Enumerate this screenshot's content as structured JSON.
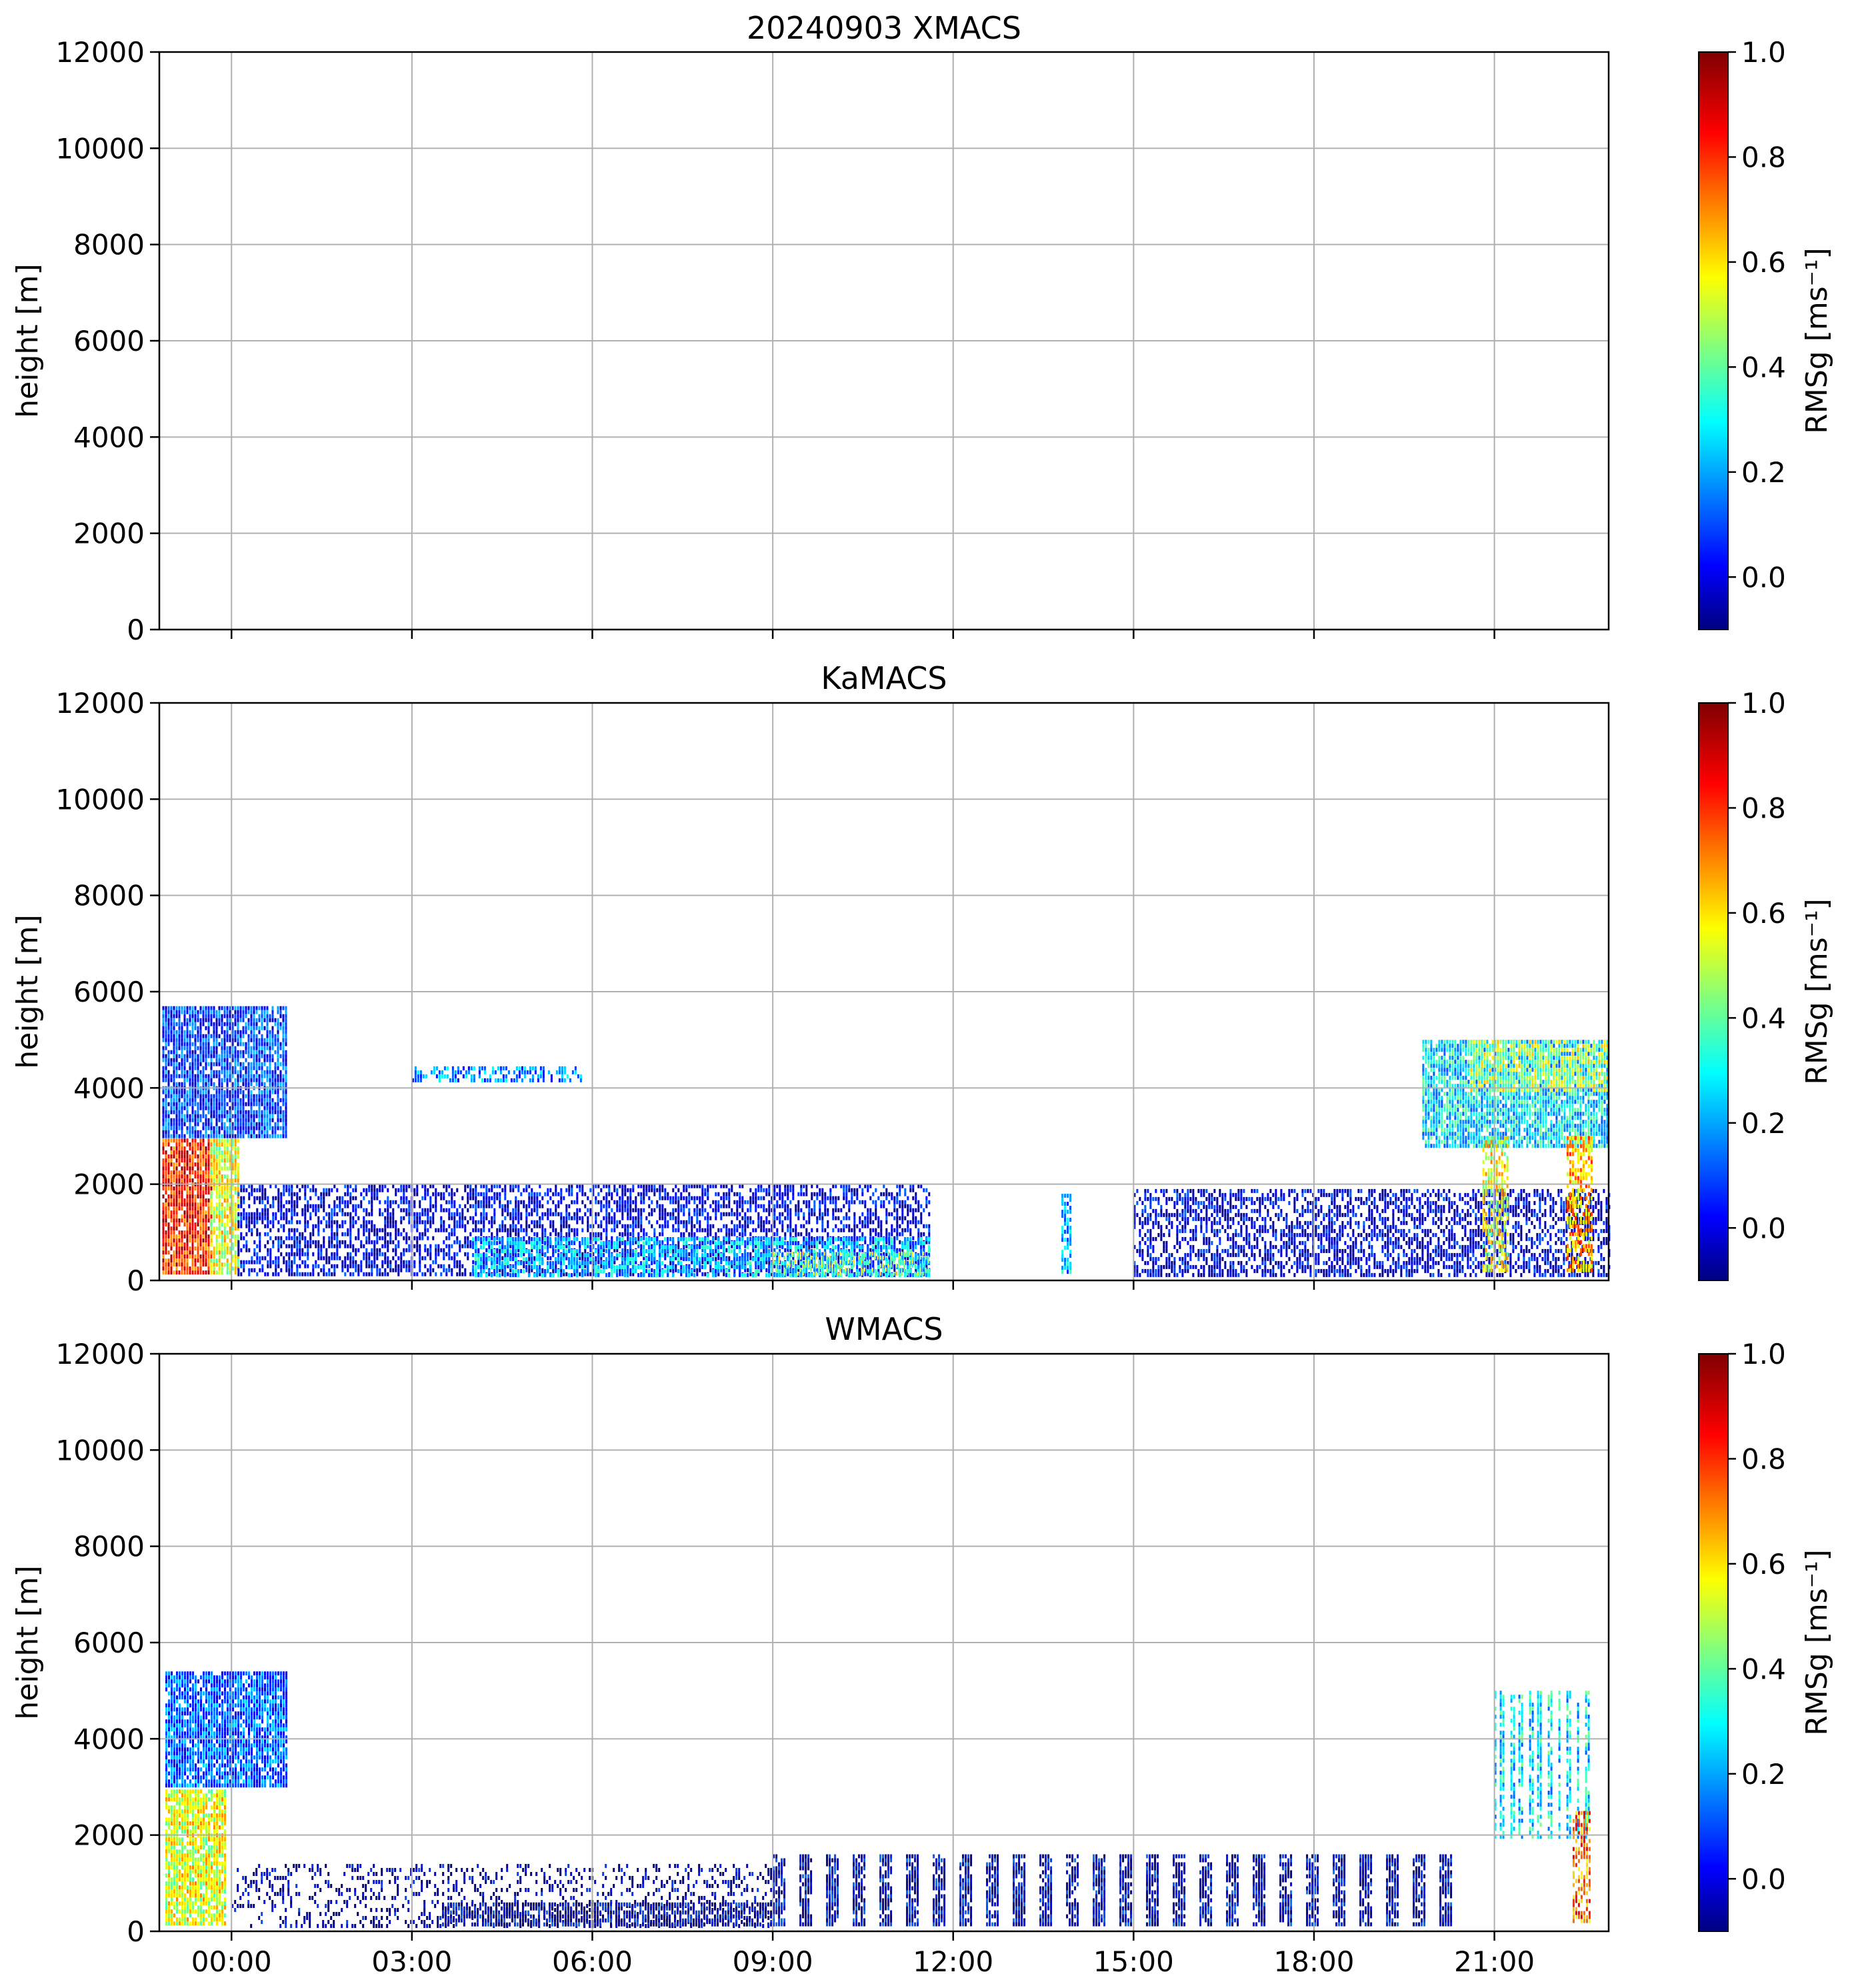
{
  "chart_data": [
    {
      "type": "heatmap",
      "title": "20240903 XMACS",
      "ylabel": "height [m]",
      "xlabel": "",
      "ylim": [
        0,
        12000
      ],
      "yticks": [
        "0",
        "2000",
        "4000",
        "6000",
        "8000",
        "10000",
        "12000"
      ],
      "xlim_hours": [
        -1.2,
        22.9
      ],
      "xticks": [],
      "grid": true,
      "colorbar": {
        "label": "RMSg [ms⁻¹]",
        "range": [
          -0.1,
          1.0
        ],
        "ticks": [
          "0.0",
          "0.2",
          "0.4",
          "0.6",
          "0.8",
          "1.0"
        ],
        "colormap": "jet"
      },
      "regions": []
    },
    {
      "type": "heatmap",
      "title": "KaMACS",
      "ylabel": "height [m]",
      "xlabel": "",
      "ylim": [
        0,
        12000
      ],
      "yticks": [
        "0",
        "2000",
        "4000",
        "6000",
        "8000",
        "10000",
        "12000"
      ],
      "xlim_hours": [
        -1.2,
        22.9
      ],
      "xticks": [],
      "grid": true,
      "colorbar": {
        "label": "RMSg [ms⁻¹]",
        "range": [
          -0.1,
          1.0
        ],
        "ticks": [
          "0.0",
          "0.2",
          "0.4",
          "0.6",
          "0.8",
          "1.0"
        ],
        "colormap": "jet"
      },
      "regions": [
        {
          "t0": -1.15,
          "t1": 0.9,
          "h0": 3000,
          "h1": 5700,
          "v": 0.18,
          "d": 0.85
        },
        {
          "t0": -1.15,
          "t1": -0.35,
          "h0": 200,
          "h1": 2950,
          "v": 0.85,
          "d": 0.9
        },
        {
          "t0": -0.35,
          "t1": 0.1,
          "h0": 200,
          "h1": 2950,
          "v": 0.6,
          "d": 0.8
        },
        {
          "t0": 0.1,
          "t1": 11.6,
          "h0": 150,
          "h1": 2000,
          "v": 0.08,
          "d": 0.55
        },
        {
          "t0": 4.0,
          "t1": 11.6,
          "h0": 150,
          "h1": 900,
          "v": 0.3,
          "d": 0.6
        },
        {
          "t0": 9.0,
          "t1": 11.6,
          "h0": 150,
          "h1": 600,
          "v": 0.55,
          "d": 0.5
        },
        {
          "t0": 3.0,
          "t1": 5.8,
          "h0": 4200,
          "h1": 4450,
          "v": 0.25,
          "d": 0.5
        },
        {
          "t0": 13.8,
          "t1": 13.95,
          "h0": 150,
          "h1": 1800,
          "v": 0.3,
          "d": 0.7
        },
        {
          "t0": 15.0,
          "t1": 22.9,
          "h0": 150,
          "h1": 1900,
          "v": 0.08,
          "d": 0.55
        },
        {
          "t0": 19.8,
          "t1": 22.9,
          "h0": 2800,
          "h1": 5000,
          "v": 0.35,
          "d": 0.85
        },
        {
          "t0": 20.6,
          "t1": 22.9,
          "h0": 4000,
          "h1": 5000,
          "v": 0.55,
          "d": 0.6
        },
        {
          "t0": 20.8,
          "t1": 21.2,
          "h0": 200,
          "h1": 3000,
          "v": 0.6,
          "d": 0.6
        },
        {
          "t0": 22.2,
          "t1": 22.6,
          "h0": 200,
          "h1": 3000,
          "v": 0.7,
          "d": 0.6
        }
      ]
    },
    {
      "type": "heatmap",
      "title": "WMACS",
      "ylabel": "height [m]",
      "xlabel": "",
      "ylim": [
        0,
        12000
      ],
      "yticks": [
        "0",
        "2000",
        "4000",
        "6000",
        "8000",
        "10000",
        "12000"
      ],
      "xlim_hours": [
        -1.2,
        22.9
      ],
      "xticks": [
        "00:00",
        "03:00",
        "06:00",
        "09:00",
        "12:00",
        "15:00",
        "18:00",
        "21:00"
      ],
      "grid": true,
      "colorbar": {
        "label": "RMSg [ms⁻¹]",
        "range": [
          -0.1,
          1.0
        ],
        "ticks": [
          "0.0",
          "0.2",
          "0.4",
          "0.6",
          "0.8",
          "1.0"
        ],
        "colormap": "jet"
      },
      "regions": [
        {
          "t0": -1.1,
          "t1": 0.9,
          "h0": 3000,
          "h1": 5400,
          "v": 0.2,
          "d": 0.85
        },
        {
          "t0": -1.1,
          "t1": -0.1,
          "h0": 200,
          "h1": 2950,
          "v": 0.6,
          "d": 0.85
        },
        {
          "t0": 0.0,
          "t1": 9.0,
          "h0": 150,
          "h1": 1400,
          "v": 0.05,
          "d": 0.25
        },
        {
          "t0": 3.5,
          "t1": 9.0,
          "h0": 150,
          "h1": 600,
          "v": 0.1,
          "d": 0.7
        },
        {
          "t0": 9.0,
          "t1": 20.5,
          "h0": 150,
          "h1": 1600,
          "v": 0.1,
          "d": 0.8,
          "stripes": 0.45
        },
        {
          "t0": 21.0,
          "t1": 22.6,
          "h0": 2000,
          "h1": 5000,
          "v": 0.35,
          "d": 0.7,
          "stripes": 0.45
        },
        {
          "t0": 22.3,
          "t1": 22.6,
          "h0": 200,
          "h1": 2500,
          "v": 0.75,
          "d": 0.6
        }
      ]
    }
  ]
}
